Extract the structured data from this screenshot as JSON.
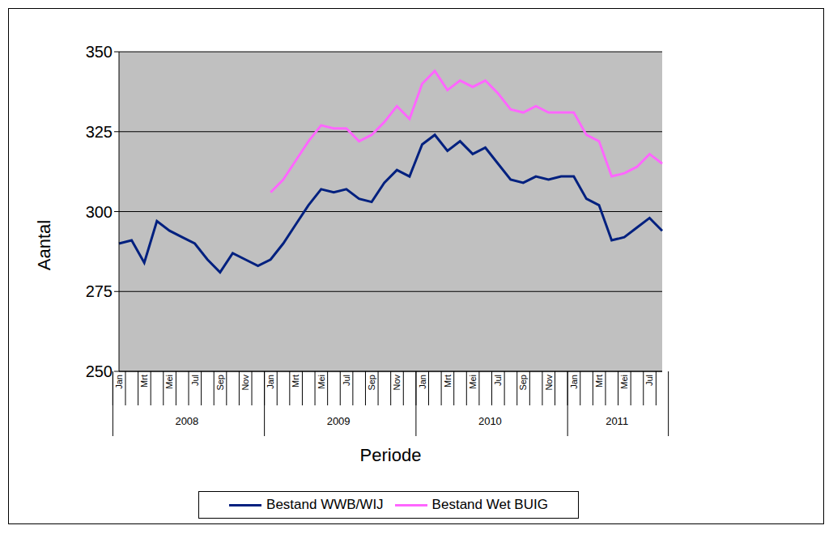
{
  "chart_data": {
    "type": "line",
    "x_label": "Periode",
    "y_label": "Aantal",
    "categories": [
      "Jan",
      null,
      "Mrt",
      null,
      "Mei",
      null,
      "Jul",
      null,
      "Sep",
      null,
      "Nov",
      null,
      "Jan",
      null,
      "Mrt",
      null,
      "Mei",
      null,
      "Jul",
      null,
      "Sep",
      null,
      "Nov",
      null,
      "Jan",
      null,
      "Mrt",
      null,
      "Mei",
      null,
      "Jul",
      null,
      "Sep",
      null,
      "Nov",
      null,
      "Jan",
      null,
      "Mrt",
      null,
      "Mei",
      null,
      "Jul",
      null
    ],
    "year_groups": [
      {
        "label": "2008",
        "count": 12
      },
      {
        "label": "2009",
        "count": 12
      },
      {
        "label": "2010",
        "count": 12
      },
      {
        "label": "2011",
        "count": 8
      }
    ],
    "series": [
      {
        "name": "Bestand WWB/WIJ",
        "color": "#00207f",
        "values": [
          290,
          291,
          284,
          297,
          294,
          292,
          290,
          285,
          281,
          287,
          285,
          283,
          285,
          290,
          296,
          302,
          307,
          306,
          307,
          304,
          303,
          309,
          313,
          311,
          321,
          324,
          319,
          322,
          318,
          320,
          315,
          310,
          309,
          311,
          310,
          311,
          311,
          304,
          302,
          291,
          292,
          295,
          298,
          294
        ]
      },
      {
        "name": "Bestand Wet BUIG",
        "color": "#ff66ff",
        "values": [
          null,
          null,
          null,
          null,
          null,
          null,
          null,
          null,
          null,
          null,
          null,
          null,
          306,
          310,
          316,
          322,
          327,
          326,
          326,
          322,
          324,
          328,
          333,
          329,
          340,
          344,
          338,
          341,
          339,
          341,
          337,
          332,
          331,
          333,
          331,
          331,
          331,
          324,
          322,
          311,
          312,
          314,
          318,
          315
        ]
      }
    ],
    "ylim": [
      250,
      350
    ],
    "yticks": [
      250,
      275,
      300,
      325,
      350
    ],
    "grid": true,
    "legend": "bottom"
  }
}
